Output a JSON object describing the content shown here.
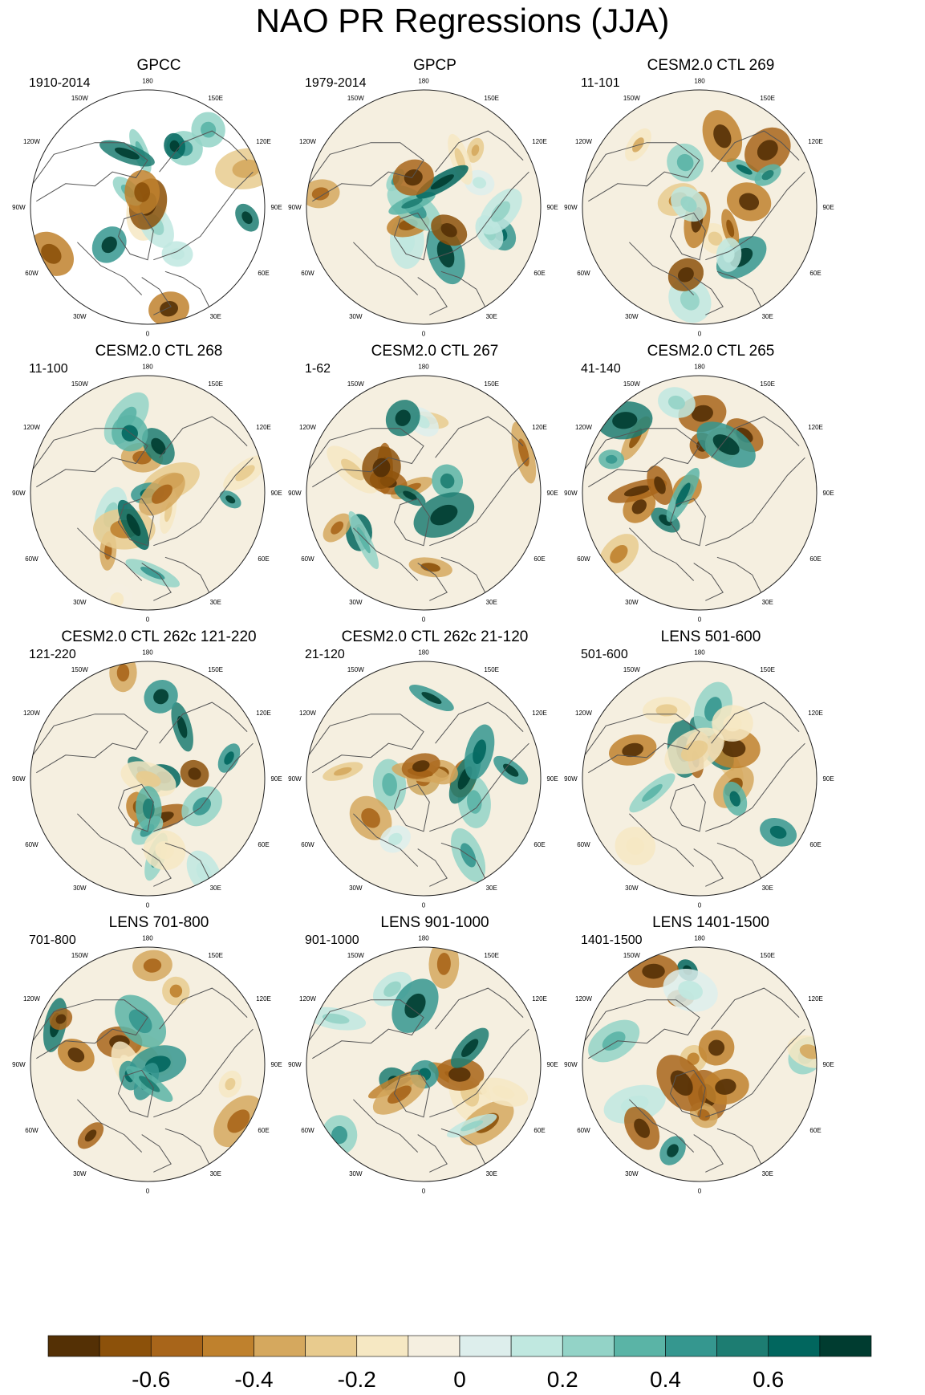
{
  "chart_data": {
    "type": "heatmap",
    "title": "NAO PR Regressions (JJA)",
    "projection": "north polar stereographic",
    "longitude_labels": [
      "180",
      "150E",
      "120E",
      "90E",
      "60E",
      "30E",
      "0",
      "30W",
      "60W",
      "90W",
      "120W",
      "150W"
    ],
    "panels": [
      {
        "title": "GPCC",
        "period": "1910-2014"
      },
      {
        "title": "GPCP",
        "period": "1979-2014"
      },
      {
        "title": "CESM2.0 CTL 269",
        "period": "11-101"
      },
      {
        "title": "CESM2.0 CTL 268",
        "period": "11-100"
      },
      {
        "title": "CESM2.0 CTL 267",
        "period": "1-62"
      },
      {
        "title": "CESM2.0 CTL 265",
        "period": "41-140"
      },
      {
        "title": "CESM2.0 CTL 262c 121-220",
        "period": "121-220"
      },
      {
        "title": "CESM2.0 CTL 262c 21-120",
        "period": "21-120"
      },
      {
        "title": "LENS 501-600",
        "period": "501-600"
      },
      {
        "title": "LENS 701-800",
        "period": "701-800"
      },
      {
        "title": "LENS 901-1000",
        "period": "901-1000"
      },
      {
        "title": "LENS 1401-1500",
        "period": "1401-1500"
      }
    ],
    "colorbar": {
      "range": [
        -0.8,
        0.8
      ],
      "step": 0.1,
      "tick_labels": [
        "-0.6",
        "-0.4",
        "-0.2",
        "0",
        "0.2",
        "0.4",
        "0.6"
      ],
      "tick_values": [
        -0.6,
        -0.4,
        -0.2,
        0,
        0.2,
        0.4,
        0.6
      ],
      "colors": [
        "#543005",
        "#8c510a",
        "#a8651a",
        "#bf812d",
        "#d5a85e",
        "#e8cb8e",
        "#f6e8c3",
        "#f5efe0",
        "#ddeeec",
        "#c0e8e0",
        "#93d3c7",
        "#5ab4a6",
        "#35978f",
        "#1d7d72",
        "#01665e",
        "#003c30"
      ]
    }
  }
}
